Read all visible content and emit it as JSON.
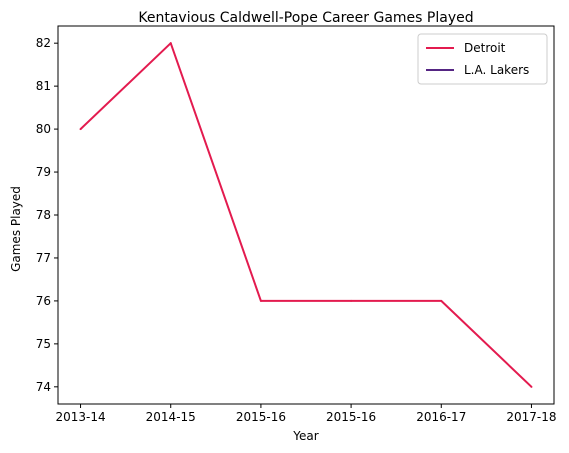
{
  "chart_data": {
    "type": "line",
    "title": "Kentavious Caldwell-Pope Career Games Played",
    "xlabel": "Year",
    "ylabel": "Games Played",
    "categories": [
      "2013-14",
      "2014-15",
      "2015-16",
      "2015-16",
      "2016-17",
      "2017-18"
    ],
    "x": [
      0,
      1,
      2,
      3,
      4,
      5
    ],
    "ylim": [
      73.6,
      82.4
    ],
    "yticks": [
      74,
      75,
      76,
      77,
      78,
      79,
      80,
      81,
      82
    ],
    "grid": false,
    "legend_placement": "top-right",
    "series": [
      {
        "name": "Detroit",
        "color": "#e31b4f",
        "x": [
          0,
          1,
          2,
          3,
          4,
          5
        ],
        "values": [
          80,
          82,
          76,
          76,
          76,
          74
        ]
      },
      {
        "name": "L.A. Lakers",
        "color": "#552583",
        "x": [],
        "values": []
      }
    ]
  }
}
